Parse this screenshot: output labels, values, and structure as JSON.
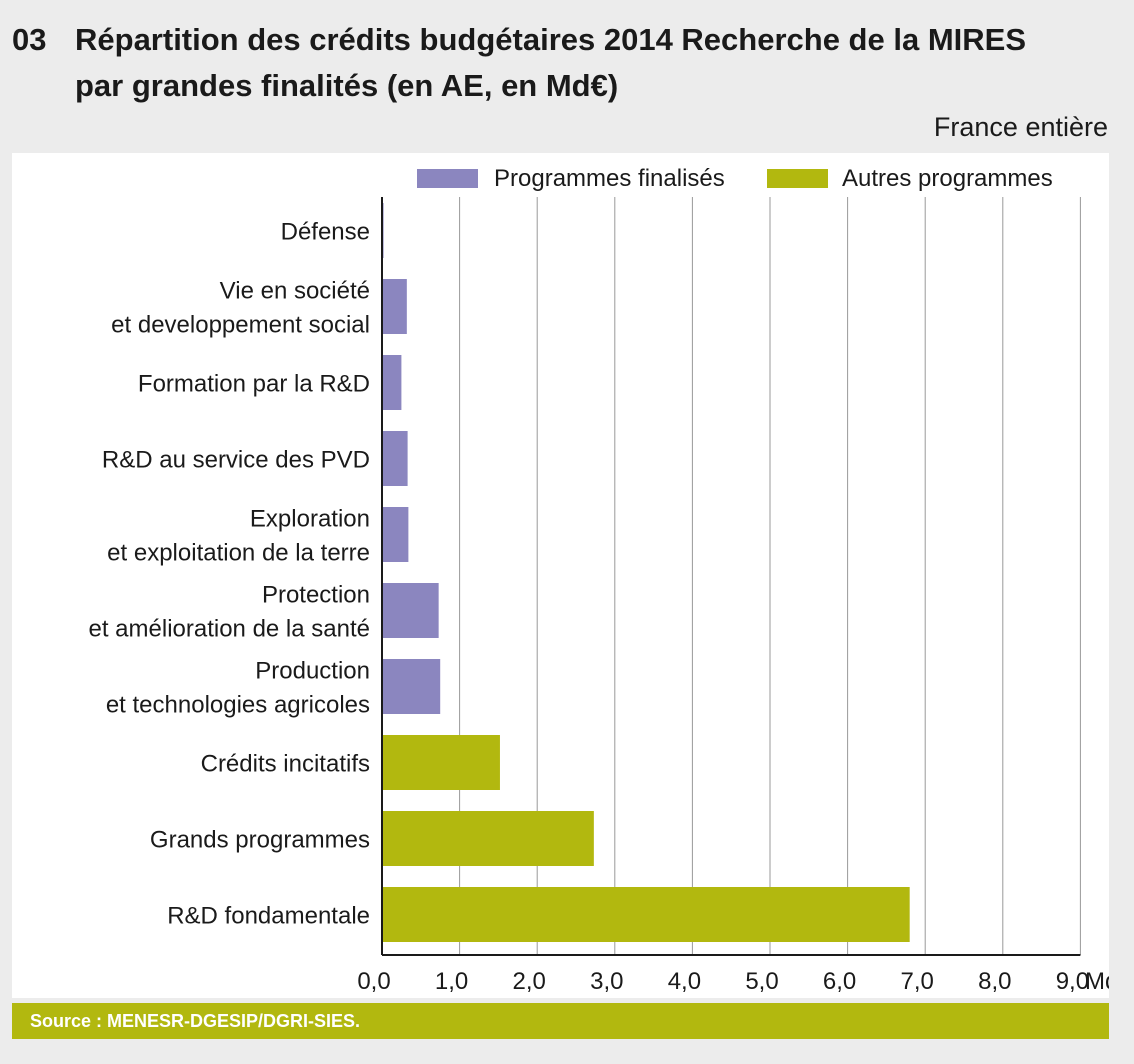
{
  "header": {
    "number": "03",
    "title_line1": "Répartition des crédits budgétaires 2014 Recherche de la MIRES",
    "title_line2": "par grandes finalités (en AE, en Md€)",
    "scope": "France entière"
  },
  "source": "Source : MENESR-DGESIP/DGRI-SIES.",
  "colors": {
    "programmes_finalises": "#8b86bf",
    "autres_programmes": "#b2b80f",
    "grid": "#999999",
    "axis": "#1a1a1a"
  },
  "chart_data": {
    "type": "bar",
    "orientation": "horizontal",
    "categories": [
      [
        "Défense"
      ],
      [
        "Vie en société",
        "et developpement social"
      ],
      [
        "Formation par la R&D"
      ],
      [
        "R&D au service des PVD"
      ],
      [
        "Exploration",
        "et exploitation de la terre"
      ],
      [
        "Protection",
        "et amélioration de la santé"
      ],
      [
        "Production",
        "et technologies agricoles"
      ],
      [
        "Crédits incitatifs"
      ],
      [
        "Grands programmes"
      ],
      [
        "R&D fondamentale"
      ]
    ],
    "series": [
      {
        "name": "Programmes finalisés",
        "values": [
          0.02,
          0.32,
          0.25,
          0.33,
          0.34,
          0.73,
          0.75,
          null,
          null,
          null
        ]
      },
      {
        "name": "Autres programmes",
        "values": [
          null,
          null,
          null,
          null,
          null,
          null,
          null,
          1.52,
          2.73,
          6.8
        ]
      }
    ],
    "xlim": [
      0,
      9
    ],
    "xticks": [
      "0,0",
      "1,0",
      "2,0",
      "3,0",
      "4,0",
      "5,0",
      "6,0",
      "7,0",
      "8,0",
      "9,0"
    ],
    "xunit": "Md€",
    "grid": true,
    "legend": "top"
  }
}
